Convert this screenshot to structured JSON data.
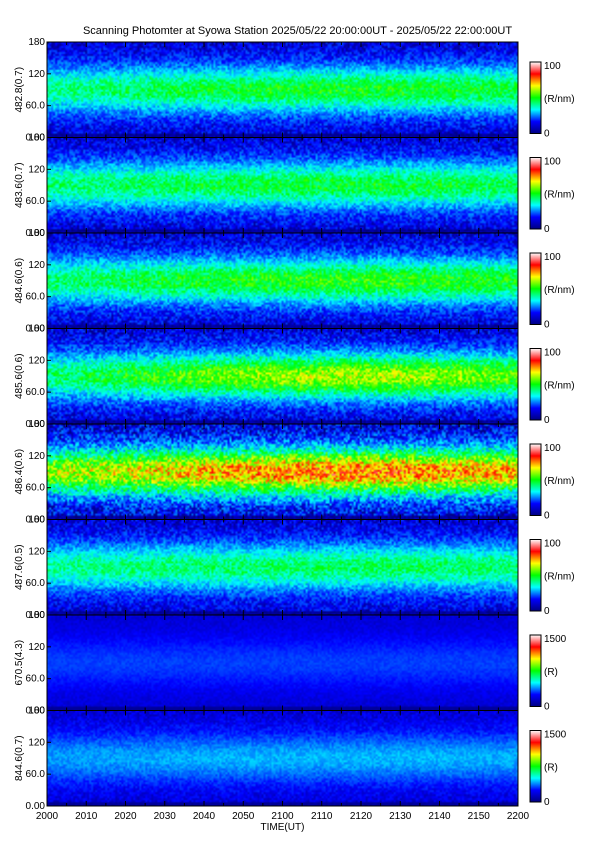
{
  "title": "Scanning Photomter at Syowa Station 2025/05/22 20:00:00UT - 2025/05/22 22:00:00UT",
  "chart_data": {
    "type": "heatmap",
    "xlabel": "TIME(UT)",
    "xticks": [
      "2000",
      "2010",
      "2020",
      "2030",
      "2040",
      "2050",
      "2100",
      "2110",
      "2120",
      "2130",
      "2140",
      "2150",
      "2200"
    ],
    "yticks": [
      "0.00",
      "60.0",
      "120",
      "180"
    ],
    "ylim": [
      0,
      180
    ],
    "colormap": [
      "#000080",
      "#0000ff",
      "#00ffff",
      "#00ff00",
      "#ffff00",
      "#ff0000",
      "#ffffff"
    ],
    "panels": [
      {
        "ylabel": "482.8(0.7)",
        "unit": "(R/nm)",
        "cmin": "0",
        "cmax": "100",
        "level": 0.4,
        "trend": 0.15
      },
      {
        "ylabel": "483.6(0.7)",
        "unit": "(R/nm)",
        "cmin": "0",
        "cmax": "100",
        "level": 0.4,
        "trend": 0.1
      },
      {
        "ylabel": "484.6(0.6)",
        "unit": "(R/nm)",
        "cmin": "0",
        "cmax": "100",
        "level": 0.42,
        "trend": 0.15
      },
      {
        "ylabel": "485.6(0.6)",
        "unit": "(R/nm)",
        "cmin": "0",
        "cmax": "100",
        "level": 0.45,
        "trend": 0.3
      },
      {
        "ylabel": "486.4(0.6)",
        "unit": "(R/nm)",
        "cmin": "0",
        "cmax": "100",
        "level": 0.62,
        "trend": 0.2
      },
      {
        "ylabel": "487.6(0.5)",
        "unit": "(R/nm)",
        "cmin": "0",
        "cmax": "100",
        "level": 0.38,
        "trend": 0.08
      },
      {
        "ylabel": "670.5(4.3)",
        "unit": "(R)",
        "cmin": "0",
        "cmax": "1500",
        "level": 0.1,
        "trend": 0.0
      },
      {
        "ylabel": "844.6(0.7)",
        "unit": "(R)",
        "cmin": "0",
        "cmax": "1500",
        "level": 0.2,
        "trend": 0.1
      }
    ]
  }
}
